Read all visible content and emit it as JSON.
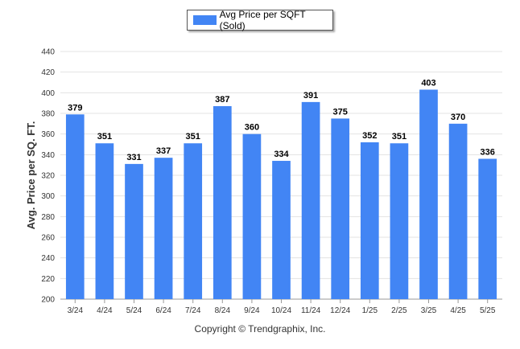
{
  "chart_data": {
    "type": "bar",
    "legend": "Avg Price per SQFT (Sold)",
    "ylabel": "Avg. Price per SQ. FT.",
    "xlabel": "",
    "ylim": [
      200,
      440
    ],
    "yticks": [
      200,
      220,
      240,
      260,
      280,
      300,
      320,
      340,
      360,
      380,
      400,
      420,
      440
    ],
    "categories": [
      "3/24",
      "4/24",
      "5/24",
      "6/24",
      "7/24",
      "8/24",
      "9/24",
      "10/24",
      "11/24",
      "12/24",
      "1/25",
      "2/25",
      "3/25",
      "4/25",
      "5/25"
    ],
    "values": [
      379,
      351,
      331,
      337,
      351,
      387,
      360,
      334,
      391,
      375,
      352,
      351,
      403,
      370,
      336
    ],
    "bar_color": "#4285f4",
    "grid": true,
    "legend_position": "top-center"
  },
  "footer": {
    "copyright": "Copyright © Trendgraphix, Inc."
  }
}
